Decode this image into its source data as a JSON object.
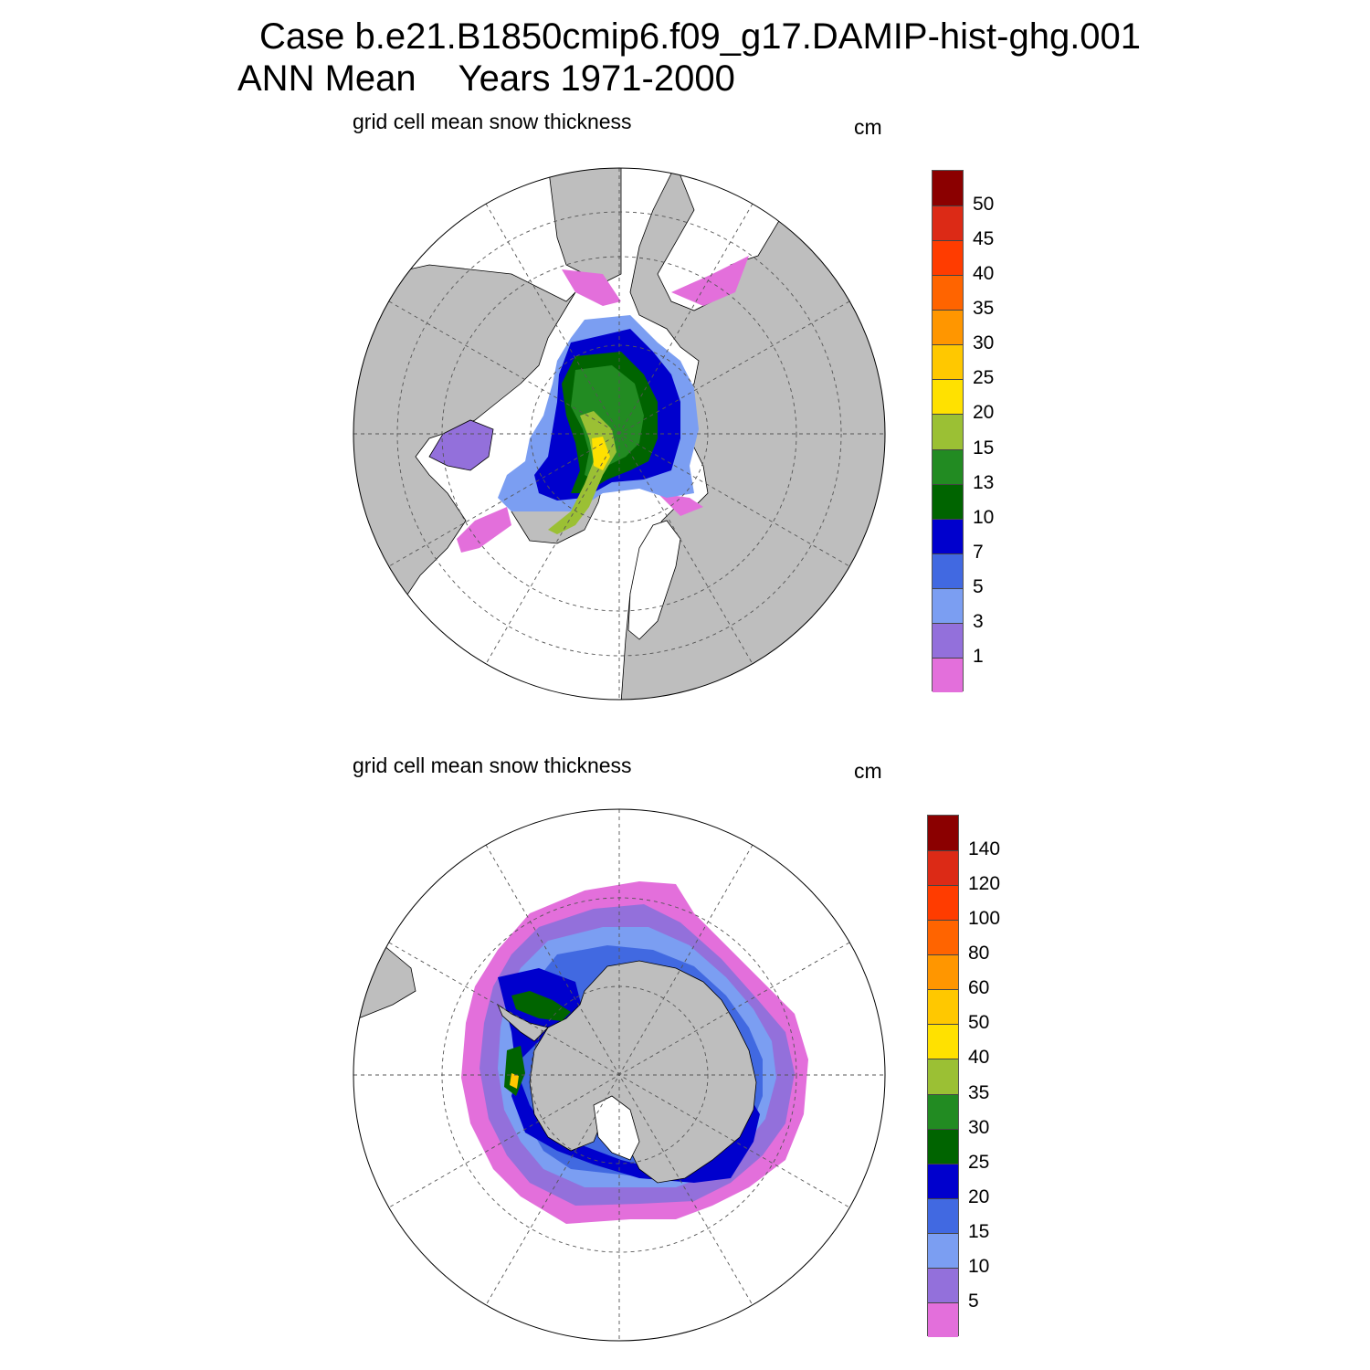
{
  "title": {
    "line1": "Case b.e21.B1850cmip6.f09_g17.DAMIP-hist-ghg.001",
    "line2_left": "ANN Mean",
    "line2_right": "Years 1971-2000"
  },
  "panels": [
    {
      "subtitle": "grid cell mean snow thickness",
      "unit": "cm",
      "hemisphere": "north",
      "colorbar_labels": [
        "50",
        "45",
        "40",
        "35",
        "30",
        "25",
        "20",
        "15",
        "13",
        "10",
        "7",
        "5",
        "3",
        "1"
      ],
      "colorbar_colors": [
        "#8b0000",
        "#dc2a16",
        "#ff3c00",
        "#ff6400",
        "#ff9600",
        "#ffc800",
        "#ffe100",
        "#9bc034",
        "#228b22",
        "#006400",
        "#0000cd",
        "#4169e1",
        "#7b9ef2",
        "#9370db",
        "#e36fdb"
      ]
    },
    {
      "subtitle": "grid cell mean snow thickness",
      "unit": "cm",
      "hemisphere": "south",
      "colorbar_labels": [
        "140",
        "120",
        "100",
        "80",
        "60",
        "50",
        "40",
        "35",
        "30",
        "25",
        "20",
        "15",
        "10",
        "5"
      ],
      "colorbar_colors": [
        "#8b0000",
        "#dc2a16",
        "#ff3c00",
        "#ff6400",
        "#ff9600",
        "#ffc800",
        "#ffe100",
        "#9bc034",
        "#228b22",
        "#006400",
        "#0000cd",
        "#4169e1",
        "#7b9ef2",
        "#9370db",
        "#e36fdb"
      ]
    }
  ],
  "colors": {
    "land": "#bebebe",
    "ocean": "#ffffff",
    "grid": "#555555"
  }
}
